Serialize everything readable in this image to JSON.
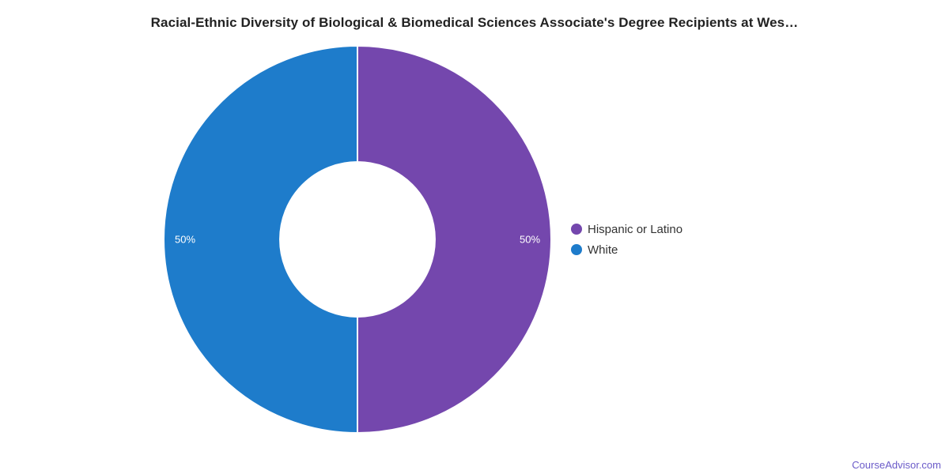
{
  "title": "Racial-Ethnic Diversity of Biological & Biomedical Sciences Associate's Degree Recipients at Wes…",
  "watermark": "CourseAdvisor.com",
  "colors": {
    "background": "#ffffff",
    "title_text": "#222222",
    "legend_text": "#333333",
    "data_label_text": "#ffffff",
    "slice_border": "#ffffff",
    "watermark_link": "#6B5BC9"
  },
  "chart_data": {
    "type": "pie",
    "subtype": "donut",
    "title": "Racial-Ethnic Diversity of Biological & Biomedical Sciences Associate's Degree Recipients at Wes…",
    "categories": [
      "Hispanic or Latino",
      "White"
    ],
    "values": [
      50,
      50
    ],
    "unit": "%",
    "data_labels": [
      "50%",
      "50%"
    ],
    "slice_colors": [
      "#7447AD",
      "#1E7CCB"
    ],
    "inner_radius_ratio": 0.4,
    "start_angle_deg": 0,
    "direction": "clockwise",
    "legend_position": "right-middle",
    "grid": false
  },
  "legend": {
    "items": [
      {
        "label": "Hispanic or Latino",
        "color": "#7447AD"
      },
      {
        "label": "White",
        "color": "#1E7CCB"
      }
    ]
  }
}
